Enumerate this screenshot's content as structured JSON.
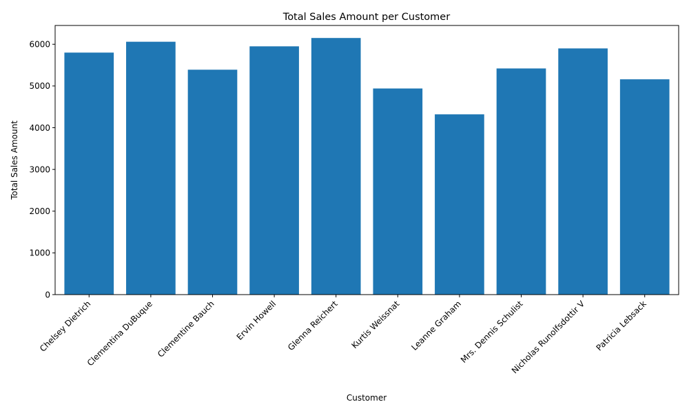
{
  "chart_data": {
    "type": "bar",
    "title": "Total Sales Amount per Customer",
    "xlabel": "Customer",
    "ylabel": "Total Sales Amount",
    "categories": [
      "Chelsey Dietrich",
      "Clementina DuBuque",
      "Clementine Bauch",
      "Ervin Howell",
      "Glenna Reichert",
      "Kurtis Weissnat",
      "Leanne Graham",
      "Mrs. Dennis Schulist",
      "Nicholas Runolfsdottir V",
      "Patricia Lebsack"
    ],
    "values": [
      5800,
      6060,
      5390,
      5950,
      6150,
      4940,
      4320,
      5420,
      5900,
      5160
    ],
    "yticks": [
      0,
      1000,
      2000,
      3000,
      4000,
      5000,
      6000
    ],
    "ylim": [
      0,
      6450
    ],
    "bar_color": "#1f77b4",
    "grid": false,
    "legend": "none"
  }
}
